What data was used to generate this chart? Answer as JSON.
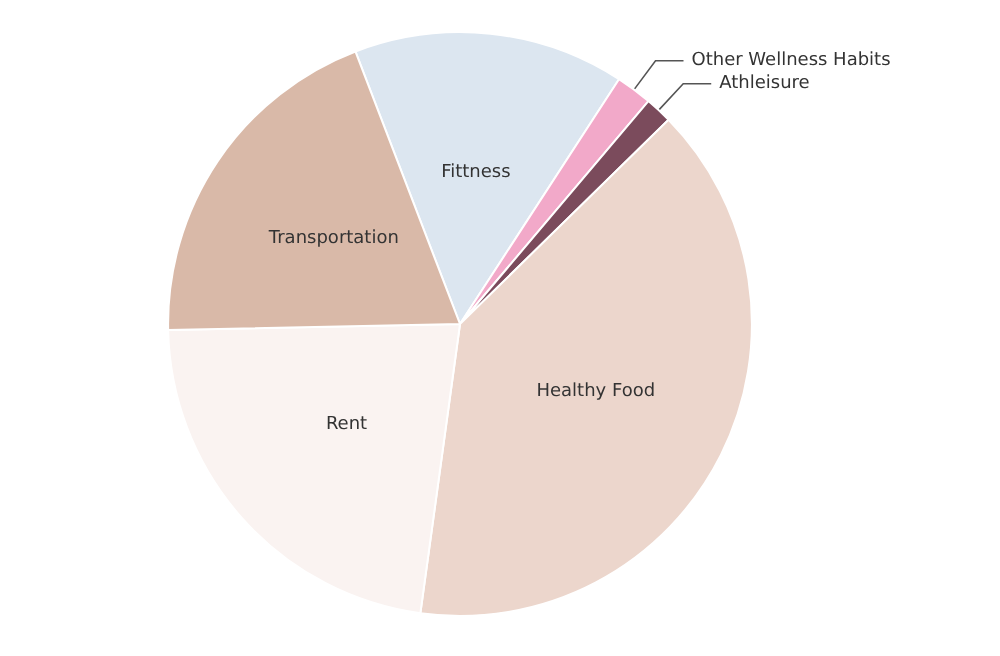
{
  "chart_data": {
    "type": "pie",
    "categories": [
      "Fittness",
      "Other Wellness Habits",
      "Athleisure",
      "Healthy Food",
      "Rent",
      "Transportation"
    ],
    "values": [
      15,
      2,
      1.5,
      39.5,
      22.5,
      19.5
    ],
    "colors": [
      "#dce6f0",
      "#f2a9c9",
      "#7b4b5c",
      "#ecd6cc",
      "#faf3f1",
      "#d9b9a8"
    ],
    "legend": false
  }
}
